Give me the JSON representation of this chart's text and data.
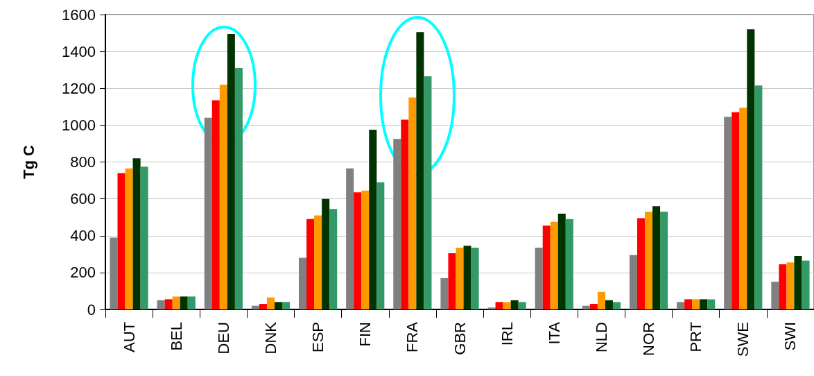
{
  "chart_data": {
    "type": "bar",
    "ylabel": "Tg C",
    "categories": [
      "AUT",
      "BEL",
      "DEU",
      "DNK",
      "ESP",
      "FIN",
      "FRA",
      "GBR",
      "IRL",
      "ITA",
      "NLD",
      "NOR",
      "PRT",
      "SWE",
      "SWI"
    ],
    "series": [
      {
        "color": "#808080",
        "values": [
          390,
          50,
          1040,
          20,
          280,
          765,
          925,
          170,
          10,
          335,
          20,
          295,
          40,
          1045,
          150
        ]
      },
      {
        "color": "#ff0000",
        "values": [
          740,
          55,
          1135,
          30,
          490,
          635,
          1030,
          305,
          40,
          455,
          30,
          495,
          55,
          1070,
          245
        ]
      },
      {
        "color": "#ff9900",
        "values": [
          765,
          70,
          1220,
          65,
          510,
          645,
          1150,
          335,
          40,
          475,
          95,
          530,
          55,
          1095,
          255
        ]
      },
      {
        "color": "#003300",
        "values": [
          820,
          70,
          1495,
          40,
          600,
          975,
          1505,
          345,
          50,
          520,
          50,
          560,
          55,
          1520,
          290
        ]
      },
      {
        "color": "#339966",
        "values": [
          775,
          70,
          1310,
          40,
          545,
          690,
          1265,
          335,
          40,
          490,
          40,
          530,
          55,
          1215,
          265
        ]
      }
    ],
    "ylim": [
      0,
      1600
    ],
    "yticks": [
      0,
      200,
      400,
      600,
      800,
      1000,
      1200,
      1400,
      1600
    ],
    "grid": "y"
  }
}
